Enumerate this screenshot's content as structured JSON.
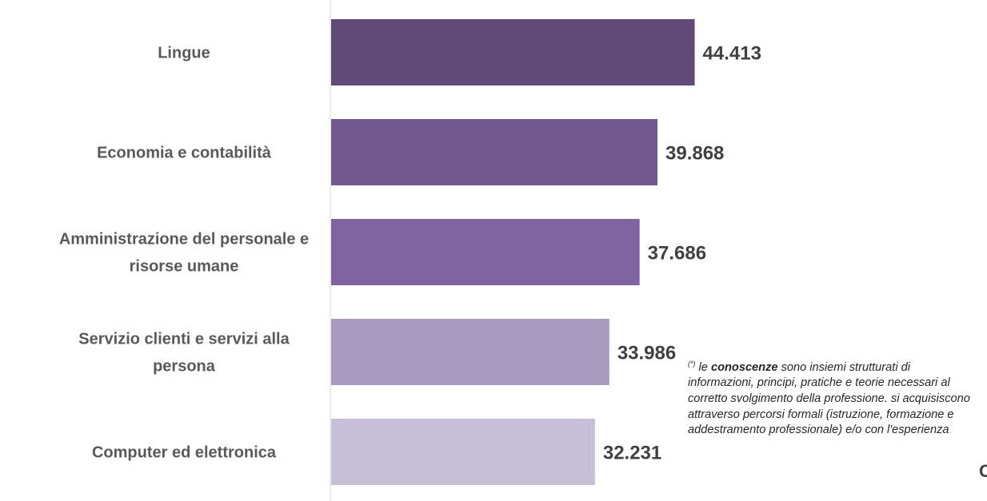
{
  "chart_data": {
    "type": "bar",
    "orientation": "horizontal",
    "categories": [
      [
        "Lingue"
      ],
      [
        "Economia e contabilità"
      ],
      [
        "Amministrazione del personale e",
        "risorse umane"
      ],
      [
        "Servizio clienti e servizi alla",
        "persona"
      ],
      [
        "Computer ed elettronica"
      ]
    ],
    "values": [
      44413,
      39868,
      37686,
      33986,
      32231
    ],
    "value_labels": [
      "44.413",
      "39.868",
      "37.686",
      "33.986",
      "32.231"
    ],
    "colors": [
      "#614a78",
      "#72588f",
      "#8064a2",
      "#a99bc0",
      "#c7bfd8"
    ],
    "xlim": [
      0,
      48000
    ],
    "grid": false,
    "legend": "none"
  },
  "footnote": {
    "marker": "(*)",
    "lead": " le ",
    "keyword": "conoscenze",
    "text": " sono insiemi strutturati di informazioni, principi, pratiche e teorie necessari al corretto svolgimento della professione. si acquisiscono attraverso percorsi formali (istruzione, formazione e addestramento professionale) e/o con l'esperienza"
  },
  "edge_fragment": "C"
}
